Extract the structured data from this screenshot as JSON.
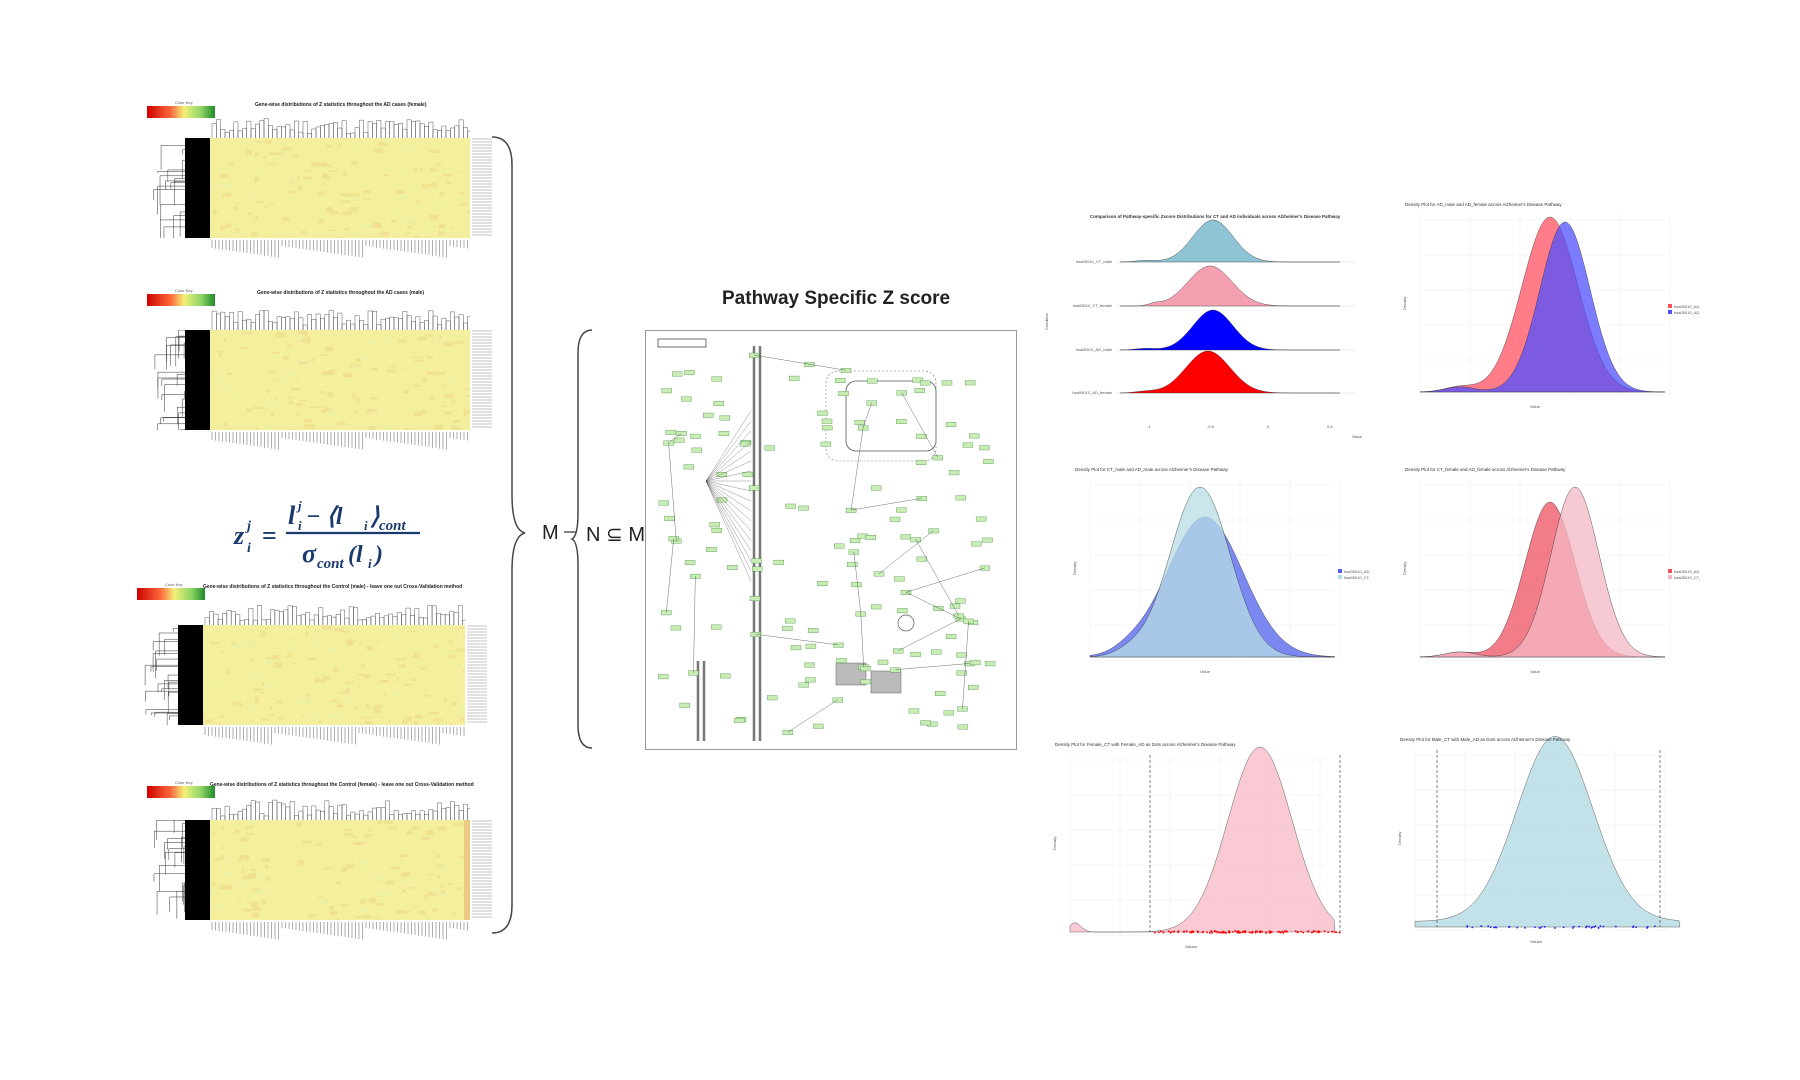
{
  "heatmaps": [
    {
      "title": "Gene-wise distributions of Z statistics throughout the AD cases (female)",
      "colorkey_label": "Color Key"
    },
    {
      "title": "Gene-wise distributions of Z statistics throughout the AD cases (male)",
      "colorkey_label": "Color Key"
    },
    {
      "title": "Gene-wise distributions of Z statistics throughout the Control (male) - leave one out Cross-Validation method",
      "colorkey_label": "Color Key"
    },
    {
      "title": "Gene-wise distributions of Z statistics throughout the Control (female) - leave one out Cross-Validation method",
      "colorkey_label": "Color Key"
    }
  ],
  "formula": {
    "lhs": "z",
    "lhs_sub": "i",
    "lhs_sup": "j",
    "eq": "=",
    "num_l": "l",
    "num_sub": "i",
    "num_sup": "j",
    "num_rest": " − ⟨l",
    "num_rest_sub": "i",
    "num_close": "⟩",
    "num_cont": "cont",
    "den": "σ",
    "den_sub": "cont",
    "den_arg": "(l",
    "den_arg_sub": "i",
    "den_close": ")"
  },
  "labels": {
    "m": "M",
    "n_subset_m": "N ⊆ M",
    "pathway_title": "Pathway Specific Z score"
  },
  "ridge": {
    "title": "Comparison of Pathway-specific Zscore Distributions for CT and AD individuals across Alzheimer's Disease Pathway",
    "ylabel": "Condition",
    "xlabel": "Value",
    "rows": [
      "hsa05010_CT_male",
      "hsa05010_CT_female",
      "hsa05010_AD_male",
      "hsa05010_AD_female"
    ],
    "colors": [
      "#8fc4d4",
      "#f4a0b0",
      "#0000ff",
      "#ff0000"
    ]
  },
  "density_panels": [
    {
      "title": "Density Plot for AD_male and AD_female across Alzheimer's Disease Pathway",
      "xlabel": "Value",
      "ylabel": "Density",
      "legend": [
        "hsa05010_AD_female",
        "hsa05010_AD_male"
      ],
      "colors": [
        "#ff5060",
        "#5050ff"
      ]
    },
    {
      "title": "Density Plot for CT_male and AD_male across Alzheimer's Disease Pathway",
      "xlabel": "Value",
      "ylabel": "Density",
      "legend": [
        "hsa05010_AD_male",
        "hsa05010_CT_male"
      ],
      "colors": [
        "#5060ee",
        "#b8dce4"
      ]
    },
    {
      "title": "Density Plot for CT_female and AD_female across Alzheimer's Disease Pathway",
      "xlabel": "Value",
      "ylabel": "Density",
      "legend": [
        "hsa05010_AD_female",
        "hsa05010_CT_female"
      ],
      "colors": [
        "#ee5060",
        "#f4b8c4"
      ]
    },
    {
      "title": "Density Plot for Female_CT with Female_AD as Dots across Alzheimer's Disease Pathway",
      "xlabel": "Values",
      "ylabel": "Density",
      "colors": [
        "#f8c0cc",
        "#ff0000"
      ]
    },
    {
      "title": "Density Plot for Male_CT with Male_AD as Dots across Alzheimer's Disease Pathway",
      "xlabel": "Values",
      "ylabel": "Density",
      "colors": [
        "#b8dce4",
        "#2020ee"
      ]
    }
  ]
}
